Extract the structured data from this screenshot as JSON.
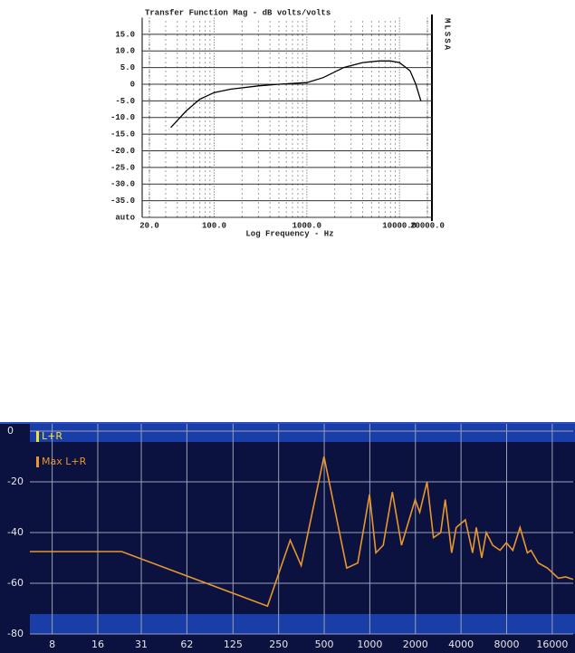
{
  "chart_data": [
    {
      "type": "line",
      "title": "Transfer Function Mag - dB volts/volts",
      "side_label": "MLSSA",
      "x_label": "Log Frequency - Hz",
      "log_x": true,
      "grid": true,
      "xlim": [
        20,
        20000
      ],
      "xticks": [
        {
          "value": 20,
          "label": "20.0"
        },
        {
          "value": 100,
          "label": "100.0"
        },
        {
          "value": 1000,
          "label": "1000.0"
        },
        {
          "value": 10000,
          "label": "10000.0"
        },
        {
          "value": 20000,
          "label": "20000.0"
        }
      ],
      "ylim": [
        -40,
        20
      ],
      "yticks": [
        {
          "value": -40,
          "label": "auto"
        },
        {
          "value": -35,
          "label": "-35.0"
        },
        {
          "value": -30,
          "label": "-30.0"
        },
        {
          "value": -25,
          "label": "-25.0"
        },
        {
          "value": -20,
          "label": "-20.0"
        },
        {
          "value": -15,
          "label": "-15.0"
        },
        {
          "value": -10,
          "label": "-10.0"
        },
        {
          "value": -5,
          "label": "-5.0"
        },
        0,
        {
          "value": 5,
          "label": "5.0"
        },
        {
          "value": 10,
          "label": "10.0"
        },
        {
          "value": 15,
          "label": "15.0"
        }
      ],
      "x": [
        34,
        50,
        70,
        100,
        150,
        300,
        500,
        1000,
        1500,
        2500,
        4000,
        6000,
        8000,
        10000,
        13000,
        15000,
        17000
      ],
      "series": [
        {
          "color": "#000000",
          "values": [
            -13,
            -8,
            -4.5,
            -2.5,
            -1.5,
            -0.5,
            0,
            0.5,
            2,
            5,
            6.5,
            7,
            7,
            6.5,
            4,
            0,
            -5
          ]
        }
      ]
    },
    {
      "type": "line",
      "log_x": true,
      "grid": true,
      "xlim": [
        5.7,
        22000
      ],
      "xticks": [
        8,
        16,
        31,
        62,
        125,
        250,
        500,
        1000,
        2000,
        4000,
        8000,
        16000
      ],
      "ylim": [
        -80,
        0
      ],
      "yticks": [
        -80,
        -60,
        -40,
        -20,
        0
      ],
      "x": [
        5.7,
        23,
        211,
        298,
        352,
        498,
        704,
        832,
        996,
        1097,
        1226,
        1408,
        1618,
        1991,
        2134,
        2386,
        2629,
        2937,
        3147,
        3469,
        3718,
        4270,
        4771,
        5043,
        5480,
        5873,
        6471,
        7230,
        7968,
        8780,
        9810,
        10960,
        11585,
        12944,
        14870,
        17560,
        19620,
        22000
      ],
      "series": [
        {
          "name": "L+R",
          "color": "#f0e030",
          "values": [
            null,
            null,
            null,
            null,
            null,
            null,
            null,
            null,
            null,
            null,
            null,
            null,
            null,
            null,
            null,
            null,
            null,
            null,
            null,
            null,
            null,
            null,
            null,
            null,
            null,
            null,
            null,
            null,
            null,
            null,
            null,
            null,
            null,
            null,
            null,
            null,
            null,
            null
          ]
        },
        {
          "name": "Max L+R",
          "color": "#e8962e",
          "values": [
            -47.5,
            -47.5,
            -69,
            -43,
            -53,
            -10,
            -54,
            -52,
            -25,
            -48,
            -45,
            -24,
            -45,
            -27,
            -32,
            -20,
            -42,
            -40,
            -27,
            -48,
            -38,
            -35,
            -48,
            -38,
            -50,
            -40,
            -45,
            -47,
            -44,
            -47,
            -38,
            -48,
            -47,
            -52,
            -54,
            -58,
            -57.5,
            -58.5
          ]
        }
      ]
    }
  ]
}
